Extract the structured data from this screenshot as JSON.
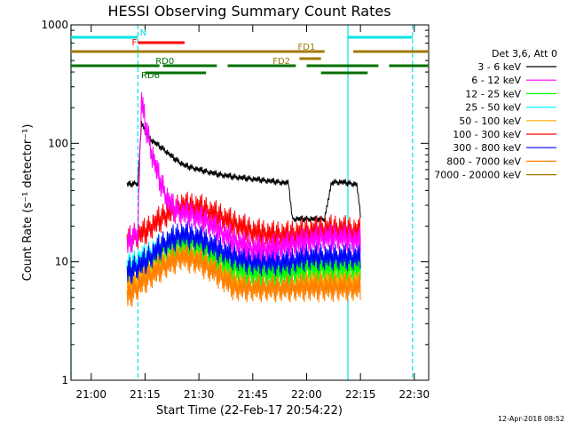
{
  "chart_data": {
    "type": "line",
    "title": "HESSI Observing Summary Count Rates",
    "xlabel": "Start Time (22-Feb-17 20:54:22)",
    "ylabel": "Count Rate (s⁻¹ detector⁻¹)",
    "y_scale": "log",
    "ylim": [
      1,
      1000
    ],
    "xlim": [
      "20:54:22",
      "22:34:00"
    ],
    "x_ticks": [
      "21:00",
      "21:15",
      "21:30",
      "21:45",
      "22:00",
      "22:15",
      "22:30"
    ],
    "y_ticks": [
      "1",
      "10",
      "100",
      "1000"
    ],
    "legend_title": "Det 3,6, Att 0",
    "legend_position": "right",
    "series": [
      {
        "name": "3 - 6 keV",
        "color": "#000000",
        "x": [
          "21:10",
          "21:13",
          "21:14",
          "21:15",
          "21:17",
          "21:20",
          "21:23",
          "21:26",
          "21:30",
          "21:35",
          "21:40",
          "21:45",
          "21:50",
          "21:55",
          "21:56",
          "22:00",
          "22:05",
          "22:07",
          "22:10",
          "22:14",
          "22:15"
        ],
        "y": [
          45,
          46,
          150,
          125,
          105,
          90,
          75,
          65,
          60,
          55,
          52,
          50,
          48,
          46,
          23,
          23,
          23,
          47,
          47,
          45,
          25
        ]
      },
      {
        "name": "6 - 12 keV",
        "color": "#ff00ff",
        "x": [
          "21:10",
          "21:13",
          "21:14",
          "21:15",
          "21:17",
          "21:19",
          "21:21",
          "21:23",
          "21:25",
          "21:28",
          "21:32",
          "21:36",
          "21:40",
          "21:45",
          "21:50",
          "21:55",
          "22:00",
          "22:05",
          "22:10",
          "22:15"
        ],
        "y": [
          14,
          18,
          235,
          150,
          80,
          50,
          35,
          28,
          26,
          25,
          22,
          18,
          15,
          13,
          13,
          14,
          15,
          16,
          16,
          15
        ]
      },
      {
        "name": "12 - 25 keV",
        "color": "#00ff00",
        "x": [
          "21:10",
          "21:15",
          "21:20",
          "21:25",
          "21:30",
          "21:35",
          "21:40",
          "21:45",
          "21:50",
          "21:55",
          "22:00",
          "22:05",
          "22:10",
          "22:15"
        ],
        "y": [
          8,
          10,
          13,
          15,
          14,
          11,
          9,
          8,
          8,
          8,
          9,
          9,
          9,
          9
        ]
      },
      {
        "name": "25 - 50 keV",
        "color": "#00ffff",
        "x": [
          "21:10",
          "21:15",
          "21:20",
          "21:25",
          "21:30",
          "21:35",
          "21:40",
          "21:45",
          "21:50",
          "21:55",
          "22:00",
          "22:05",
          "22:10",
          "22:15"
        ],
        "y": [
          9,
          11,
          14,
          16,
          15,
          12,
          10,
          9,
          9,
          9,
          10,
          10,
          10,
          10
        ]
      },
      {
        "name": "50 - 100 keV",
        "color": "#ffaa00",
        "x": [
          "21:10",
          "21:15",
          "21:20",
          "21:25",
          "21:30",
          "21:35",
          "21:40",
          "21:45",
          "21:50",
          "21:55",
          "22:00",
          "22:05",
          "22:10",
          "22:15"
        ],
        "y": [
          6,
          8,
          10,
          12,
          11,
          9,
          7,
          6,
          6,
          6,
          7,
          7,
          7,
          7
        ]
      },
      {
        "name": "100 - 300 keV",
        "color": "#ff0000",
        "x": [
          "21:10",
          "21:15",
          "21:20",
          "21:25",
          "21:30",
          "21:35",
          "21:40",
          "21:45",
          "21:50",
          "21:55",
          "22:00",
          "22:05",
          "22:10",
          "22:15"
        ],
        "y": [
          15,
          18,
          24,
          30,
          29,
          25,
          21,
          18,
          17,
          17,
          18,
          19,
          19,
          18
        ]
      },
      {
        "name": "300 - 800 keV",
        "color": "#0000ff",
        "x": [
          "21:10",
          "21:15",
          "21:20",
          "21:25",
          "21:30",
          "21:35",
          "21:40",
          "21:45",
          "21:50",
          "21:55",
          "22:00",
          "22:05",
          "22:10",
          "22:15"
        ],
        "y": [
          8,
          10,
          14,
          17,
          16,
          13,
          11,
          10,
          10,
          10,
          11,
          11,
          11,
          11
        ]
      },
      {
        "name": "800 - 7000 keV",
        "color": "#ff8000",
        "x": [
          "21:10",
          "21:15",
          "21:20",
          "21:25",
          "21:30",
          "21:35",
          "21:40",
          "21:45",
          "21:50",
          "21:55",
          "22:00",
          "22:05",
          "22:10",
          "22:15"
        ],
        "y": [
          5,
          7,
          9,
          11,
          10,
          8,
          6,
          6,
          6,
          6,
          6,
          6,
          6,
          6
        ]
      },
      {
        "name": "7000 - 20000 keV",
        "color": "#a07800",
        "x": [],
        "y": []
      }
    ],
    "vertical_lines": [
      {
        "x": "20:54:22",
        "color": "#00e5e5",
        "style": "solid"
      },
      {
        "x": "21:13:00",
        "color": "#00e5e5",
        "style": "dashed"
      },
      {
        "x": "22:11:30",
        "color": "#00e5e5",
        "style": "solid"
      },
      {
        "x": "22:29:30",
        "color": "#00e5e5",
        "style": "dashed"
      }
    ],
    "flag_bars": [
      {
        "label": "N",
        "color": "#00e5e5",
        "segments": [
          [
            "20:54:22",
            "21:13:00"
          ],
          [
            "22:11:30",
            "22:29:30"
          ]
        ]
      },
      {
        "label": "F",
        "color": "#ff0000",
        "segments": [
          [
            "21:13:00",
            "21:26:00"
          ]
        ]
      },
      {
        "label": "FD1",
        "color": "#a07800",
        "segments": [
          [
            "20:54:22",
            "22:05:00"
          ],
          [
            "22:13:00",
            "22:34:00"
          ]
        ]
      },
      {
        "label": "FD2",
        "color": "#a07800",
        "segments": [
          [
            "21:58:00",
            "22:04:00"
          ]
        ]
      },
      {
        "label": "RD0",
        "color": "#007000",
        "segments": [
          [
            "20:54:22",
            "21:19:00"
          ],
          [
            "21:20:00",
            "21:35:00"
          ],
          [
            "21:38:00",
            "21:57:00"
          ],
          [
            "22:00:00",
            "22:20:00"
          ],
          [
            "22:23:00",
            "22:34:00"
          ]
        ]
      },
      {
        "label": "RD6",
        "color": "#007000",
        "segments": [
          [
            "21:15:00",
            "21:32:00"
          ],
          [
            "22:04:00",
            "22:17:00"
          ]
        ]
      }
    ]
  },
  "footer": {
    "timestamp": "12-Apr-2018 08:52"
  }
}
